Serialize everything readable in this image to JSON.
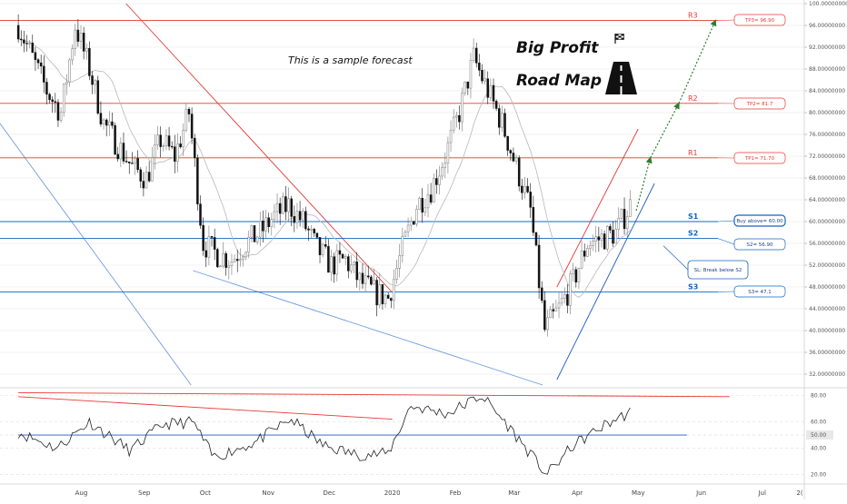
{
  "chart_data": {
    "type": "candlestick",
    "note": "This is a sample forecast",
    "headline": [
      "Big Profit",
      "Road Map"
    ],
    "x_labels": [
      "Aug",
      "Sep",
      "Oct",
      "Nov",
      "Dec",
      "2020",
      "Feb",
      "Mar",
      "Apr",
      "May",
      "Jun",
      "Jul",
      "2("
    ],
    "y_ticks": [
      "100.00000000",
      "96.00000000",
      "92.00000000",
      "88.00000000",
      "84.00000000",
      "80.00000000",
      "76.00000000",
      "72.00000000",
      "68.00000000",
      "64.00000000",
      "60.00000000",
      "56.00000000",
      "52.00000000",
      "48.00000000",
      "44.00000000",
      "40.00000000",
      "36.00000000",
      "32.00000000"
    ],
    "ylim": [
      30,
      100
    ],
    "levels": [
      {
        "name": "R3",
        "value": 96.9,
        "color": "#e53935",
        "tag": "TP3= 96.90"
      },
      {
        "name": "R2",
        "value": 81.7,
        "color": "#e53935",
        "tag": "TP2= 81.7"
      },
      {
        "name": "R1",
        "value": 71.7,
        "color": "#e53935",
        "tag": "TP1= 71.70"
      },
      {
        "name": "S1",
        "value": 60.0,
        "color": "#1565c0",
        "tag": "Buy above= 60.00"
      },
      {
        "name": "S2",
        "value": 56.9,
        "color": "#1565c0",
        "tag": "S2= 56.90"
      },
      {
        "name": "S3",
        "value": 47.1,
        "color": "#1565c0",
        "tag": "S3= 47.1"
      }
    ],
    "stop_loss": "SL: Break below S2",
    "price_path": [
      {
        "date": "2019-07-01",
        "close": 96
      },
      {
        "date": "2019-07-08",
        "close": 90
      },
      {
        "date": "2019-07-15",
        "close": 84
      },
      {
        "date": "2019-07-22",
        "close": 80
      },
      {
        "date": "2019-07-29",
        "close": 96
      },
      {
        "date": "2019-08-05",
        "close": 88
      },
      {
        "date": "2019-08-12",
        "close": 78
      },
      {
        "date": "2019-08-19",
        "close": 74
      },
      {
        "date": "2019-08-26",
        "close": 70
      },
      {
        "date": "2019-09-02",
        "close": 68
      },
      {
        "date": "2019-09-09",
        "close": 75
      },
      {
        "date": "2019-09-16",
        "close": 72
      },
      {
        "date": "2019-09-23",
        "close": 80
      },
      {
        "date": "2019-09-30",
        "close": 56
      },
      {
        "date": "2019-10-07",
        "close": 54
      },
      {
        "date": "2019-10-14",
        "close": 53
      },
      {
        "date": "2019-10-21",
        "close": 56
      },
      {
        "date": "2019-10-28",
        "close": 58
      },
      {
        "date": "2019-11-04",
        "close": 61
      },
      {
        "date": "2019-11-11",
        "close": 63
      },
      {
        "date": "2019-11-18",
        "close": 60
      },
      {
        "date": "2019-11-25",
        "close": 55
      },
      {
        "date": "2019-12-02",
        "close": 52
      },
      {
        "date": "2019-12-09",
        "close": 53
      },
      {
        "date": "2019-12-16",
        "close": 49
      },
      {
        "date": "2019-12-23",
        "close": 47
      },
      {
        "date": "2019-12-30",
        "close": 46
      },
      {
        "date": "2020-01-06",
        "close": 55
      },
      {
        "date": "2020-01-13",
        "close": 63
      },
      {
        "date": "2020-01-20",
        "close": 66
      },
      {
        "date": "2020-01-27",
        "close": 72
      },
      {
        "date": "2020-02-03",
        "close": 80
      },
      {
        "date": "2020-02-10",
        "close": 90
      },
      {
        "date": "2020-02-17",
        "close": 84
      },
      {
        "date": "2020-02-24",
        "close": 78
      },
      {
        "date": "2020-03-02",
        "close": 70
      },
      {
        "date": "2020-03-09",
        "close": 62
      },
      {
        "date": "2020-03-16",
        "close": 40
      },
      {
        "date": "2020-03-23",
        "close": 44
      },
      {
        "date": "2020-03-30",
        "close": 49
      },
      {
        "date": "2020-04-06",
        "close": 56
      },
      {
        "date": "2020-04-13",
        "close": 57
      },
      {
        "date": "2020-04-20",
        "close": 58
      },
      {
        "date": "2020-04-27",
        "close": 63
      }
    ],
    "forecast": [
      {
        "date": "2020-04-30",
        "value": 62
      },
      {
        "date": "2020-05-07",
        "value": 71.7
      },
      {
        "date": "2020-05-21",
        "value": 81.7
      },
      {
        "date": "2020-06-08",
        "value": 96.9
      }
    ],
    "trendlines": [
      {
        "color": "#e53935",
        "points": [
          {
            "date": "2019-08-23",
            "value": 100
          },
          {
            "date": "2020-01-01",
            "value": 47
          }
        ]
      },
      {
        "color": "#e53935",
        "points": [
          {
            "date": "2020-03-22",
            "value": 48
          },
          {
            "date": "2020-05-01",
            "value": 77
          }
        ]
      },
      {
        "color": "#1e5bbf",
        "points": [
          {
            "date": "2020-03-22",
            "value": 31
          },
          {
            "date": "2020-05-09",
            "value": 67
          }
        ]
      },
      {
        "color": "#6f9be0",
        "points": [
          {
            "date": "2019-06-20",
            "value": 79
          },
          {
            "date": "2019-09-24",
            "value": 30
          }
        ]
      },
      {
        "color": "#6f9be0",
        "points": [
          {
            "date": "2019-09-25",
            "value": 51
          },
          {
            "date": "2020-03-15",
            "value": 30
          }
        ]
      }
    ],
    "oscillator": {
      "y_ticks": [
        "80.00",
        "60.00",
        "50.00",
        "40.00",
        "20.00"
      ],
      "ylim": [
        15,
        83
      ],
      "lines": [
        {
          "color": "#e53935",
          "points": [
            {
              "date": "2019-07-01",
              "value": 79
            },
            {
              "date": "2020-01-01",
              "value": 62
            }
          ]
        },
        {
          "color": "#e53935",
          "points": [
            {
              "date": "2019-07-01",
              "value": 82
            },
            {
              "date": "2020-06-15",
              "value": 79
            }
          ]
        },
        {
          "color": "#1e5bbf",
          "points": [
            {
              "date": "2019-07-01",
              "value": 50
            },
            {
              "date": "2020-05-25",
              "value": 50
            }
          ]
        }
      ],
      "path": [
        {
          "date": "2019-07-01",
          "value": 52
        },
        {
          "date": "2019-07-20",
          "value": 40
        },
        {
          "date": "2019-08-05",
          "value": 60
        },
        {
          "date": "2019-08-25",
          "value": 38
        },
        {
          "date": "2019-09-10",
          "value": 58
        },
        {
          "date": "2019-09-25",
          "value": 60
        },
        {
          "date": "2019-10-05",
          "value": 33
        },
        {
          "date": "2019-10-25",
          "value": 44
        },
        {
          "date": "2019-11-12",
          "value": 62
        },
        {
          "date": "2019-11-28",
          "value": 42
        },
        {
          "date": "2019-12-15",
          "value": 35
        },
        {
          "date": "2019-12-30",
          "value": 36
        },
        {
          "date": "2020-01-10",
          "value": 72
        },
        {
          "date": "2020-01-28",
          "value": 66
        },
        {
          "date": "2020-02-14",
          "value": 80
        },
        {
          "date": "2020-02-28",
          "value": 55
        },
        {
          "date": "2020-03-17",
          "value": 20
        },
        {
          "date": "2020-03-30",
          "value": 42
        },
        {
          "date": "2020-04-15",
          "value": 58
        },
        {
          "date": "2020-04-28",
          "value": 68
        }
      ]
    }
  }
}
